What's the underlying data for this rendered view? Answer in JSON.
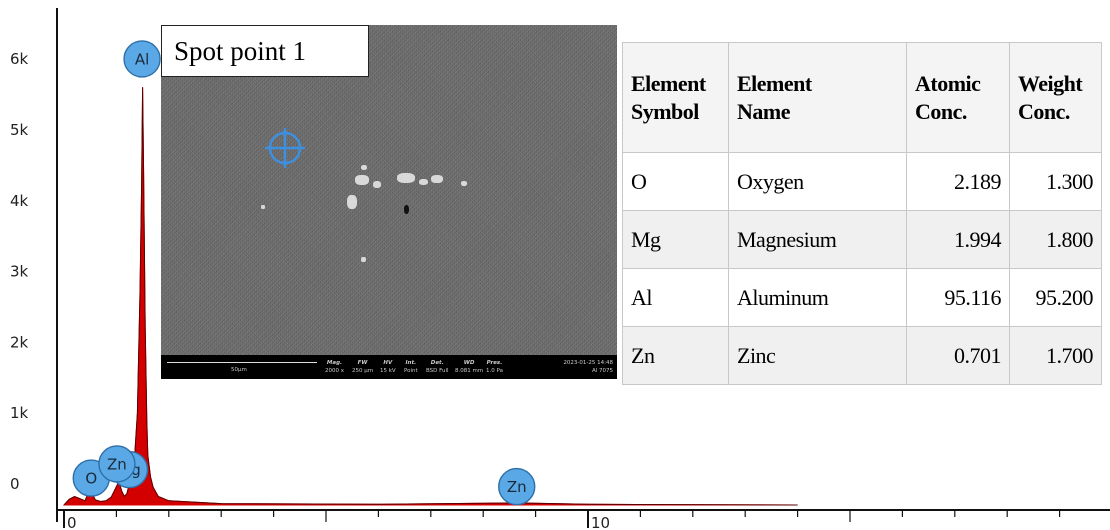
{
  "chart_data": {
    "type": "line",
    "title": "",
    "xlabel": "",
    "ylabel": "",
    "xlim": [
      0,
      20
    ],
    "ylim": [
      0,
      7000
    ],
    "x_tick_labels": [
      "0",
      "10"
    ],
    "y_tick_labels": [
      "0",
      "1k",
      "2k",
      "3k",
      "4k",
      "5k",
      "6k"
    ],
    "series": [
      {
        "color": "#d40000",
        "x": [
          0.0,
          0.1,
          0.2,
          0.3,
          0.4,
          0.45,
          0.5,
          0.55,
          0.6,
          0.7,
          0.8,
          0.9,
          1.0,
          1.05,
          1.1,
          1.15,
          1.2,
          1.25,
          1.3,
          1.35,
          1.4,
          1.45,
          1.48,
          1.5,
          1.52,
          1.55,
          1.58,
          1.6,
          1.65,
          1.7,
          1.8,
          2.0,
          3.0,
          6.0,
          8.6,
          10.0,
          14.0
        ],
        "y": [
          0,
          80,
          120,
          90,
          60,
          150,
          240,
          140,
          70,
          50,
          60,
          110,
          260,
          330,
          200,
          120,
          160,
          310,
          410,
          700,
          1300,
          3000,
          4500,
          5900,
          4700,
          2500,
          1200,
          700,
          400,
          250,
          120,
          60,
          20,
          10,
          30,
          10,
          0
        ]
      }
    ],
    "peak_labels": [
      {
        "label": "Al",
        "x": 1.49,
        "y": 6300
      },
      {
        "label": "O",
        "x": 0.52,
        "y": 380
      },
      {
        "label": "Zn",
        "x": 1.01,
        "y": 580
      },
      {
        "label": "Mg",
        "x": 1.25,
        "y": 500
      },
      {
        "label": "Zn",
        "x": 8.64,
        "y": 260
      }
    ]
  },
  "inset": {
    "spot_label": "Spot point 1",
    "sem_bar": {
      "scale": "50µm",
      "fields": [
        {
          "key": "Mag.",
          "value": "2000 x"
        },
        {
          "key": "FW",
          "value": "250 µm"
        },
        {
          "key": "HV",
          "value": "15 kV"
        },
        {
          "key": "Int.",
          "value": "Point"
        },
        {
          "key": "Det.",
          "value": "BSD Full"
        },
        {
          "key": "WD",
          "value": "8.081 mm"
        },
        {
          "key": "Pres.",
          "value": "1.0 Pa"
        }
      ],
      "date": "2023-01-25 14:48",
      "sample": "Al 7075"
    }
  },
  "table": {
    "headers": [
      [
        "Element",
        "Symbol"
      ],
      [
        "Element",
        "Name"
      ],
      [
        "Atomic",
        "Conc."
      ],
      [
        "Weight",
        "Conc."
      ]
    ],
    "rows": [
      [
        "O",
        "Oxygen",
        "2.189",
        "1.300"
      ],
      [
        "Mg",
        "Magnesium",
        "1.994",
        "1.800"
      ],
      [
        "Al",
        "Aluminum",
        "95.116",
        "95.200"
      ],
      [
        "Zn",
        "Zinc",
        "0.701",
        "1.700"
      ]
    ]
  }
}
